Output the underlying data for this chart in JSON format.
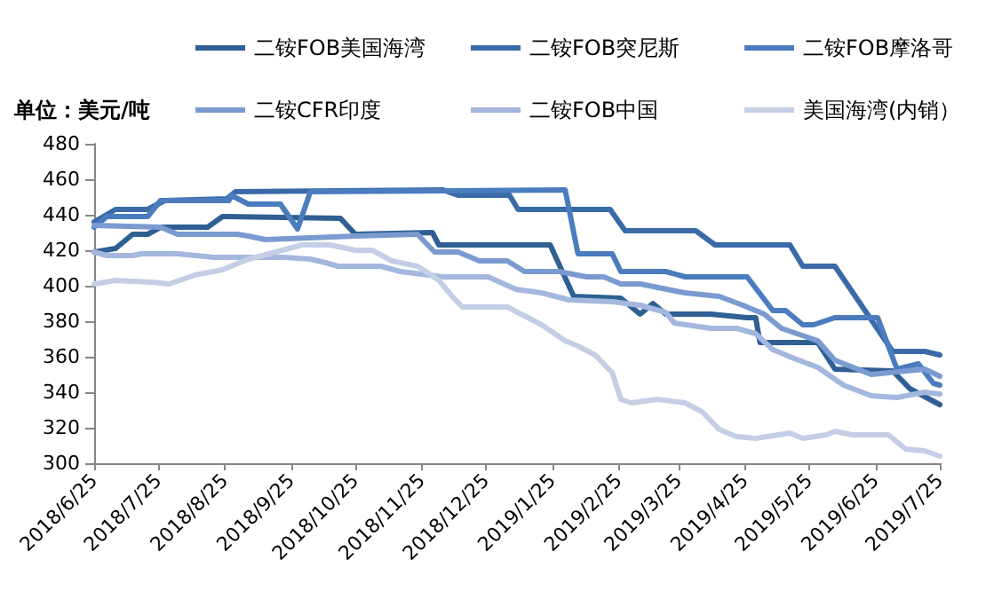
{
  "chart_data": {
    "type": "line",
    "ylabel": "单位：美元/吨",
    "legend": "top",
    "marker": "none",
    "line_style": "solid",
    "grid": false,
    "xlim": [
      "2018-06-25",
      "2019-07-25"
    ],
    "xticks": [
      {
        "value": "2018-06-25",
        "label": "2018/6/25"
      },
      {
        "value": "2018-07-25",
        "label": "2018/7/25"
      },
      {
        "value": "2018-08-25",
        "label": "2018/8/25"
      },
      {
        "value": "2018-09-25",
        "label": "2018/9/25"
      },
      {
        "value": "2018-10-25",
        "label": "2018/10/25"
      },
      {
        "value": "2018-11-25",
        "label": "2018/11/25"
      },
      {
        "value": "2018-12-25",
        "label": "2018/12/25"
      },
      {
        "value": "2019-01-25",
        "label": "2019/1/25"
      },
      {
        "value": "2019-02-25",
        "label": "2019/2/25"
      },
      {
        "value": "2019-03-25",
        "label": "2019/3/25"
      },
      {
        "value": "2019-04-25",
        "label": "2019/4/25"
      },
      {
        "value": "2019-05-25",
        "label": "2019/5/25"
      },
      {
        "value": "2019-06-25",
        "label": "2019/6/25"
      },
      {
        "value": "2019-07-25",
        "label": "2019/7/25"
      }
    ],
    "ylim": [
      300,
      480
    ],
    "yticks": [
      300,
      320,
      340,
      360,
      380,
      400,
      420,
      440,
      460,
      480
    ],
    "series": [
      {
        "name": "二铵FOB美国海湾",
        "color": "#2f5f93",
        "x": [
          "2018-06-25",
          "2018-07-05",
          "2018-07-13",
          "2018-07-20",
          "2018-07-26",
          "2018-08-17",
          "2018-08-24",
          "2018-10-18",
          "2018-10-25",
          "2018-11-30",
          "2018-12-03",
          "2019-01-24",
          "2019-02-04",
          "2019-02-26",
          "2019-03-07",
          "2019-03-13",
          "2019-03-19",
          "2019-04-09",
          "2019-04-26",
          "2019-04-30",
          "2019-05-02",
          "2019-05-29",
          "2019-06-06",
          "2019-07-03",
          "2019-07-11",
          "2019-07-25"
        ],
        "values": [
          419,
          421,
          429,
          429,
          433,
          433,
          439,
          438,
          429,
          430,
          423,
          423,
          394,
          393,
          384,
          390,
          384,
          384,
          382,
          382,
          368,
          368,
          353,
          352,
          342,
          333
        ]
      },
      {
        "name": "二铵FOB突尼斯",
        "color": "#3a6ba8",
        "x": [
          "2018-06-25",
          "2018-07-05",
          "2018-07-20",
          "2018-07-28",
          "2018-08-26",
          "2018-08-30",
          "2018-12-05",
          "2018-12-12",
          "2019-01-05",
          "2019-01-09",
          "2019-02-21",
          "2019-02-28",
          "2019-04-02",
          "2019-04-11",
          "2019-05-16",
          "2019-05-22",
          "2019-06-06",
          "2019-07-03",
          "2019-07-18",
          "2019-07-25"
        ],
        "values": [
          436,
          443,
          443,
          448,
          449,
          453,
          454,
          451,
          451,
          443,
          443,
          431,
          431,
          423,
          423,
          411,
          411,
          363,
          363,
          361
        ]
      },
      {
        "name": "二铵FOB摩洛哥",
        "color": "#4a7cbe",
        "x": [
          "2018-06-25",
          "2018-07-01",
          "2018-07-20",
          "2018-07-26",
          "2018-08-27",
          "2018-08-28",
          "2018-09-05",
          "2018-09-20",
          "2018-09-28",
          "2018-10-04",
          "2019-01-31",
          "2019-02-06",
          "2019-02-22",
          "2019-02-26",
          "2019-03-19",
          "2019-03-28",
          "2019-04-26",
          "2019-05-08",
          "2019-05-14",
          "2019-05-22",
          "2019-05-27",
          "2019-06-06",
          "2019-06-26",
          "2019-07-05",
          "2019-07-15",
          "2019-07-22",
          "2019-07-25"
        ],
        "values": [
          433,
          439,
          439,
          448,
          448,
          451,
          446,
          446,
          432,
          453,
          454,
          418,
          418,
          408,
          408,
          405,
          405,
          386,
          386,
          378,
          378,
          382,
          382,
          353,
          356,
          345,
          344
        ]
      },
      {
        "name": "二铵CFR印度",
        "color": "#7b9bd0",
        "x": [
          "2018-06-25",
          "2018-07-26",
          "2018-08-03",
          "2018-08-31",
          "2018-09-05",
          "2018-09-13",
          "2018-10-25",
          "2018-11-23",
          "2018-12-01",
          "2018-12-12",
          "2018-12-22",
          "2019-01-04",
          "2019-01-12",
          "2019-01-28",
          "2019-02-10",
          "2019-02-18",
          "2019-02-26",
          "2019-03-07",
          "2019-03-28",
          "2019-04-13",
          "2019-04-24",
          "2019-05-04",
          "2019-05-12",
          "2019-05-29",
          "2019-06-06",
          "2019-06-23",
          "2019-07-18",
          "2019-07-25"
        ],
        "values": [
          434,
          433,
          429,
          429,
          428,
          426,
          428,
          429,
          419,
          419,
          414,
          414,
          408,
          408,
          405,
          405,
          401,
          401,
          396,
          394,
          389,
          384,
          376,
          369,
          358,
          350,
          353,
          349
        ]
      },
      {
        "name": "二铵FOB中国",
        "color": "#a4b7de",
        "x": [
          "2018-06-25",
          "2018-07-01",
          "2018-07-13",
          "2018-07-17",
          "2018-08-03",
          "2018-08-20",
          "2018-09-22",
          "2018-10-04",
          "2018-10-11",
          "2018-10-17",
          "2018-10-25",
          "2018-11-06",
          "2018-11-15",
          "2018-12-05",
          "2018-12-26",
          "2019-01-08",
          "2019-01-20",
          "2019-02-02",
          "2019-02-22",
          "2019-03-07",
          "2019-03-19",
          "2019-03-23",
          "2019-04-09",
          "2019-04-21",
          "2019-04-30",
          "2019-05-08",
          "2019-05-18",
          "2019-05-29",
          "2019-06-10",
          "2019-06-23",
          "2019-07-05",
          "2019-07-18",
          "2019-07-25"
        ],
        "values": [
          419,
          417,
          417,
          418,
          418,
          416,
          416,
          415,
          413,
          411,
          411,
          411,
          408,
          405,
          405,
          398,
          396,
          392,
          391,
          389,
          385,
          379,
          376,
          376,
          373,
          364,
          359,
          354,
          344,
          338,
          337,
          340,
          339
        ]
      },
      {
        "name": "美国海湾(内销）",
        "color": "#c4cfe6",
        "x": [
          "2018-06-25",
          "2018-07-05",
          "2018-07-22",
          "2018-07-30",
          "2018-08-11",
          "2018-08-24",
          "2018-09-05",
          "2018-09-18",
          "2018-09-30",
          "2018-10-13",
          "2018-10-25",
          "2018-11-02",
          "2018-11-11",
          "2018-11-23",
          "2018-11-27",
          "2018-12-03",
          "2018-12-10",
          "2018-12-14",
          "2019-01-04",
          "2019-01-12",
          "2019-01-20",
          "2019-01-31",
          "2019-02-06",
          "2019-02-14",
          "2019-02-22",
          "2019-02-26",
          "2019-03-03",
          "2019-03-15",
          "2019-03-28",
          "2019-04-05",
          "2019-04-13",
          "2019-04-21",
          "2019-04-30",
          "2019-05-16",
          "2019-05-22",
          "2019-06-02",
          "2019-06-06",
          "2019-06-14",
          "2019-07-01",
          "2019-07-09",
          "2019-07-18",
          "2019-07-25"
        ],
        "values": [
          401,
          403,
          402,
          401,
          406,
          409,
          415,
          419,
          423,
          423,
          420,
          420,
          414,
          411,
          408,
          403,
          393,
          388,
          388,
          383,
          378,
          369,
          366,
          361,
          351,
          336,
          334,
          336,
          334,
          329,
          319,
          315,
          314,
          317,
          314,
          316,
          318,
          316,
          316,
          308,
          307,
          304
        ]
      }
    ]
  }
}
